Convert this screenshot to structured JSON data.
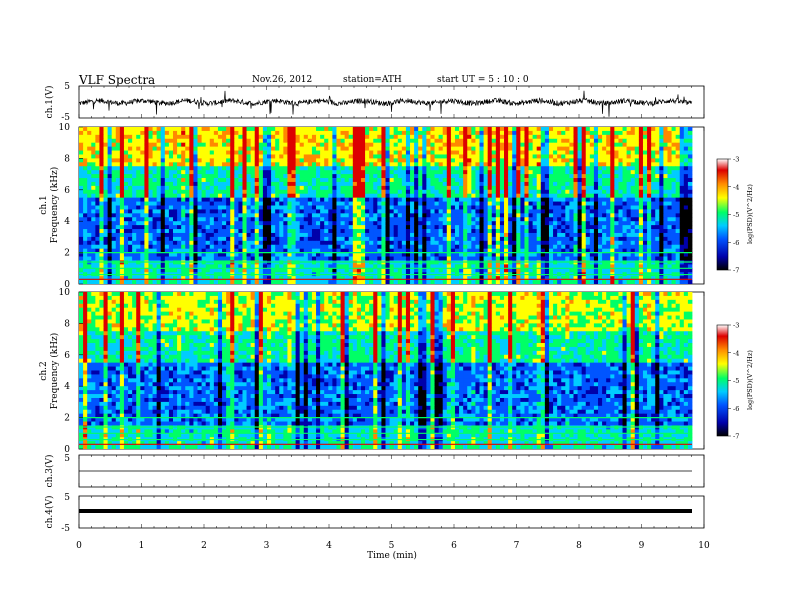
{
  "header": {
    "title": "VLF  Spectra",
    "date": "Nov.26, 2012",
    "station": "station=ATH",
    "start_ut": "start  UT  =   5  : 10 : 0"
  },
  "colors": {
    "colormap": [
      "#000000",
      "#0000aa",
      "#0055ff",
      "#00ccff",
      "#00ff66",
      "#ffff00",
      "#ff8800",
      "#dd0000",
      "#ffffff"
    ],
    "frame": "#000000",
    "trace": "#000000"
  },
  "chart_data": [
    {
      "type": "line",
      "panel": "ch1-waveform",
      "ylabel": "ch.1(V)",
      "ylim": [
        -5,
        5
      ],
      "yticks": [
        "5",
        "-5"
      ],
      "xlim": [
        0,
        10
      ],
      "baseline": 0,
      "note_level": "noisy trace near 0 V with frequent spikes"
    },
    {
      "type": "heatmap",
      "panel": "ch1-spectrogram",
      "ylabel_line1": "ch.1",
      "ylabel_line2": "Frequency  (kHz)",
      "ylim": [
        0,
        10
      ],
      "yticks": [
        "0",
        "2",
        "4",
        "6",
        "8",
        "10"
      ],
      "xlim": [
        0,
        10
      ],
      "colorbar": {
        "label": "log(PSD)(V^2/Hz)",
        "range": [
          -7,
          -3
        ],
        "ticks": [
          "-3",
          "-4",
          "-5",
          "-6",
          "-7"
        ]
      }
    },
    {
      "type": "heatmap",
      "panel": "ch2-spectrogram",
      "ylabel_line1": "ch.2",
      "ylabel_line2": "Frequency  (kHz)",
      "ylim": [
        0,
        10
      ],
      "yticks": [
        "0",
        "2",
        "4",
        "6",
        "8",
        "10"
      ],
      "xlim": [
        0,
        10
      ],
      "colorbar": {
        "label": "log(PSD)(V^2/Hz)",
        "range": [
          -7,
          -3
        ],
        "ticks": [
          "-3",
          "-4",
          "-5",
          "-6",
          "-7"
        ]
      }
    },
    {
      "type": "line",
      "panel": "ch3-waveform",
      "ylabel": "ch.3(V)",
      "ylim": [
        -5,
        5
      ],
      "yticks": [
        "5"
      ],
      "xlim": [
        0,
        10
      ],
      "baseline": 0
    },
    {
      "type": "line",
      "panel": "ch4-waveform",
      "ylabel": "ch.4(V)",
      "ylim": [
        -5,
        5
      ],
      "yticks": [
        "5",
        "-5"
      ],
      "xlim": [
        0,
        10
      ],
      "baseline": 0
    }
  ],
  "xaxis": {
    "label": "Time  (min)",
    "ticks": [
      "0",
      "1",
      "2",
      "3",
      "4",
      "5",
      "6",
      "7",
      "8",
      "9",
      "10"
    ]
  }
}
